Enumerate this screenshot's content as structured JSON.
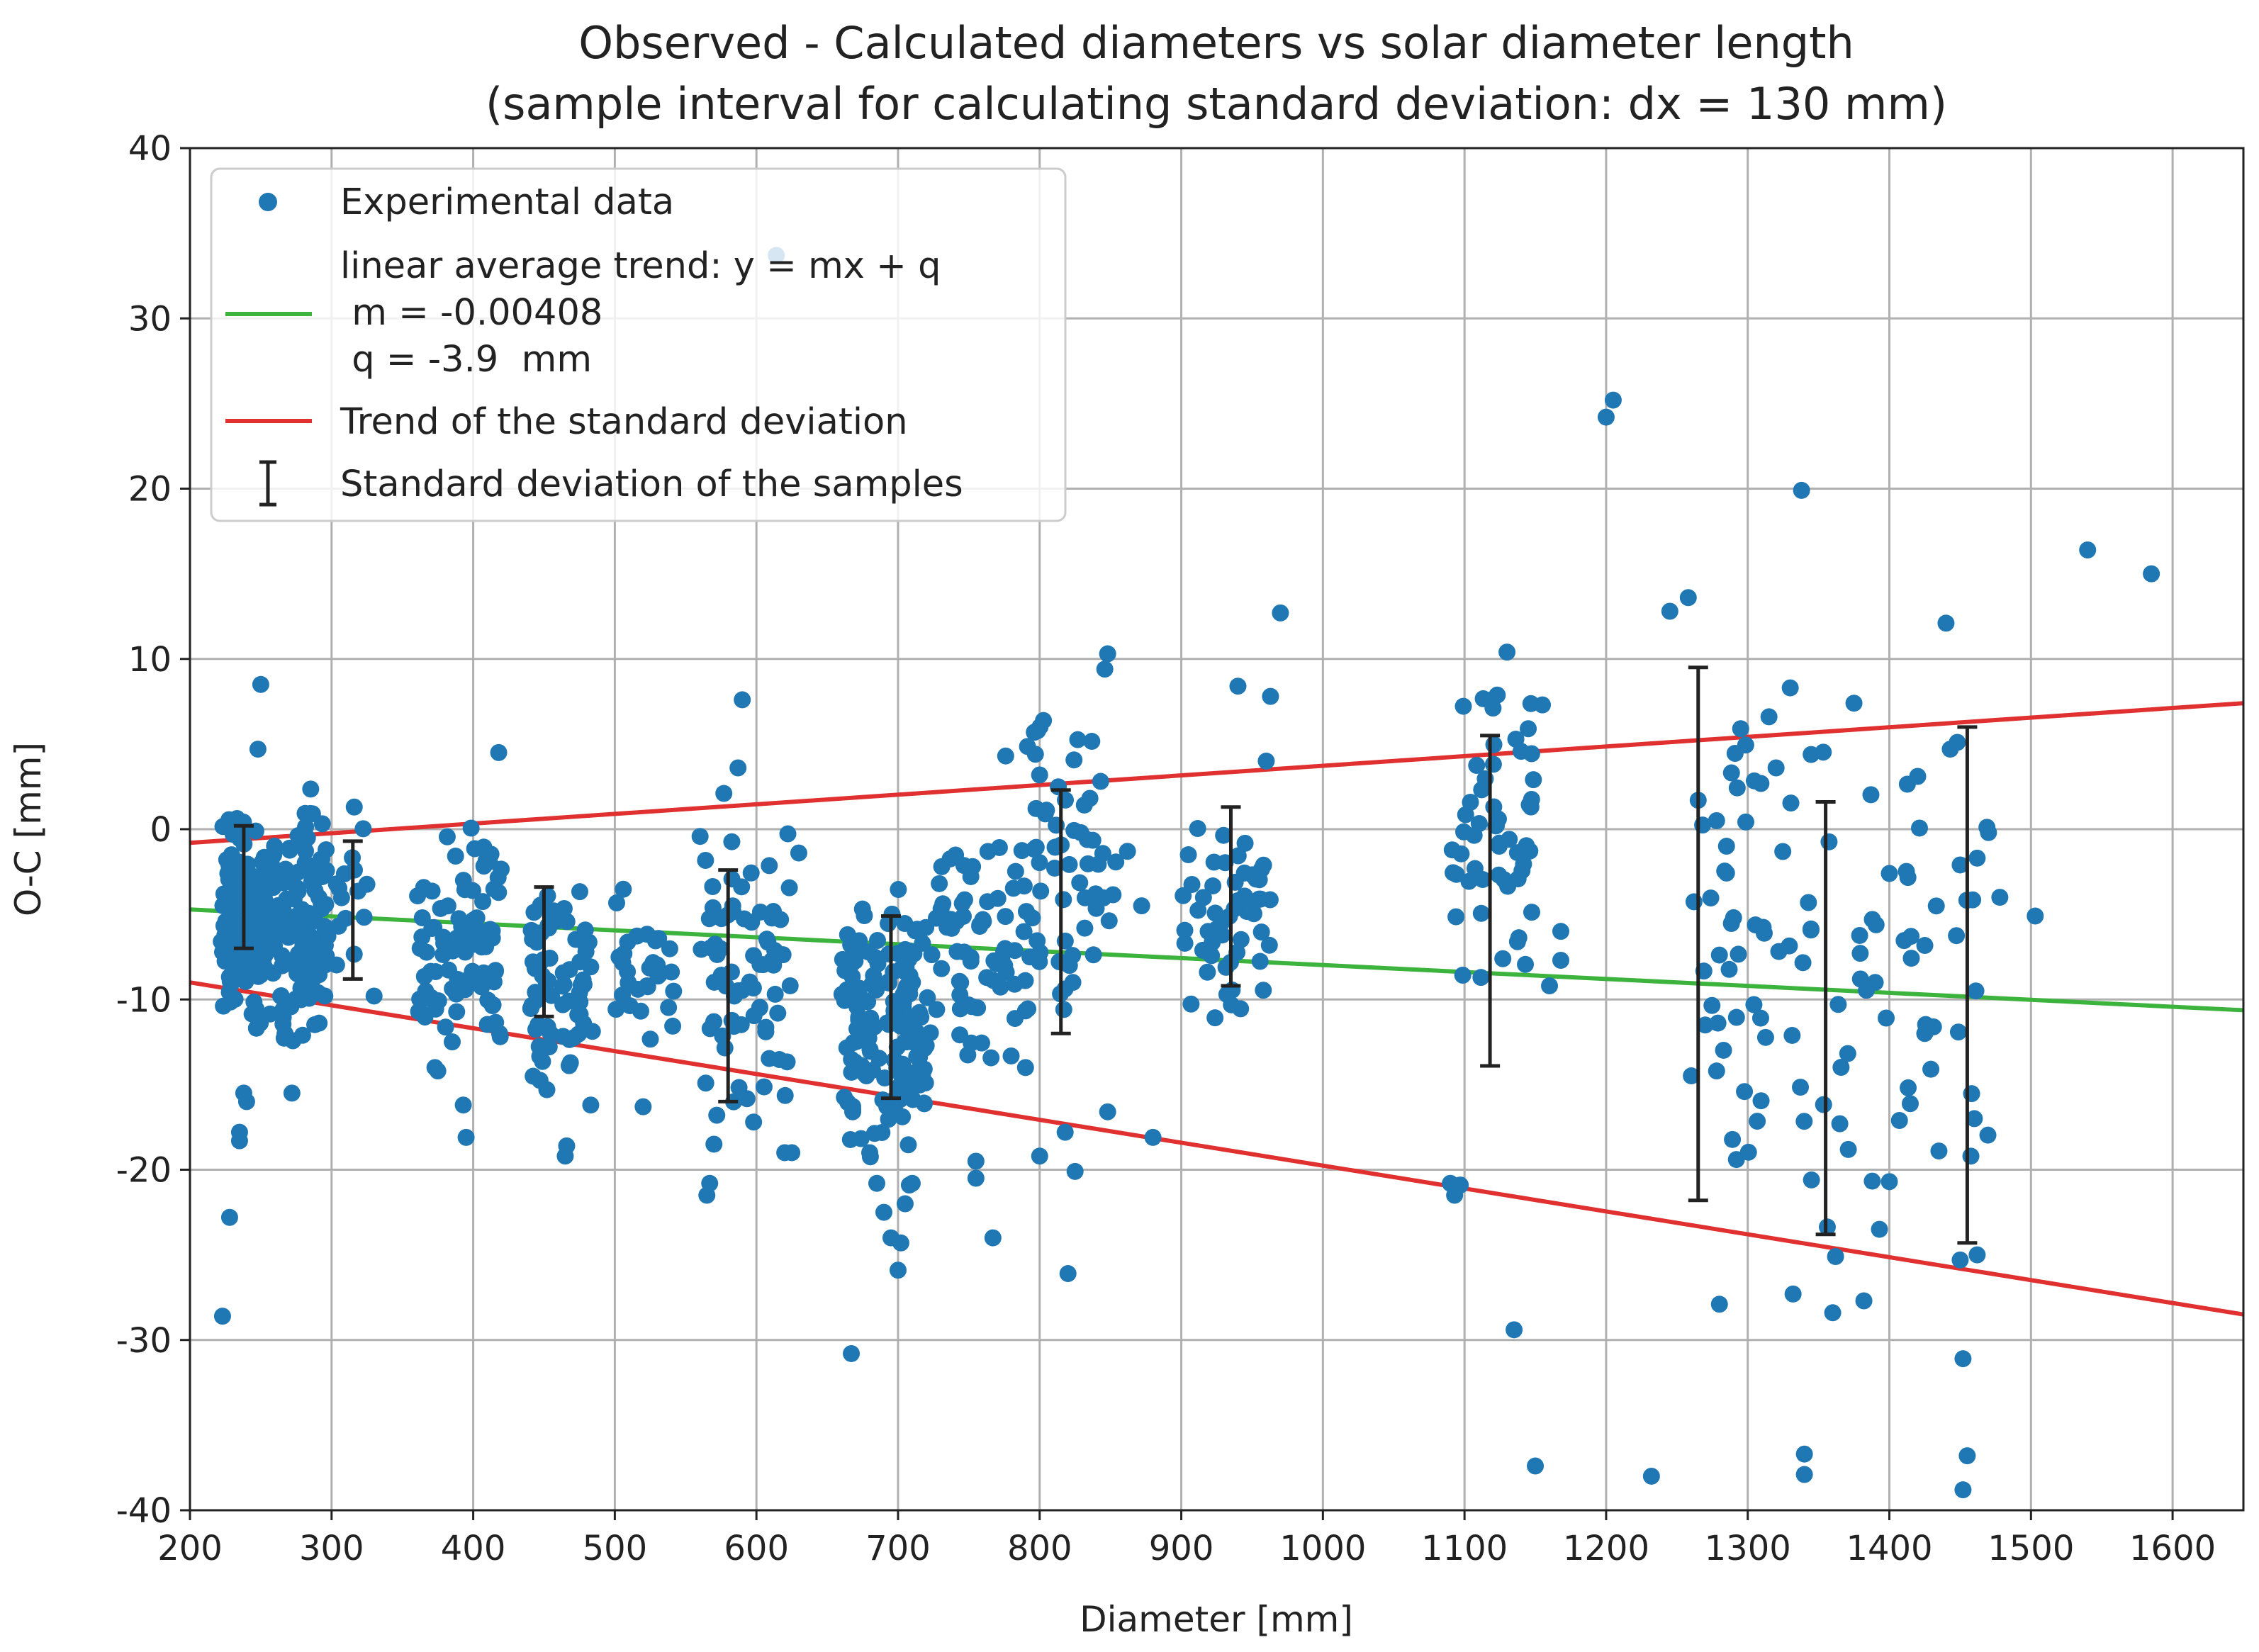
{
  "chart_data": {
    "type": "scatter",
    "title": "Observed - Calculated diameters vs solar diameter length",
    "subtitle": "(sample interval for calculating standard deviation: dx = 130 mm)",
    "xlabel": "Diameter [mm]",
    "ylabel": "O-C [mm]",
    "xlim": [
      200,
      1650
    ],
    "ylim": [
      -40,
      40
    ],
    "xticks": [
      200,
      300,
      400,
      500,
      600,
      700,
      800,
      900,
      1000,
      1100,
      1200,
      1300,
      1400,
      1500,
      1600
    ],
    "yticks": [
      -40,
      -30,
      -20,
      -10,
      0,
      10,
      20,
      30,
      40
    ],
    "grid": true,
    "legend_position": "top-left",
    "colors": {
      "points": "#1f77b4",
      "linear_trend": "#3cb33c",
      "std_trend": "#e03030",
      "error_bars": "#222222"
    },
    "legend": [
      {
        "kind": "marker",
        "lines": [
          "Experimental data"
        ]
      },
      {
        "kind": "green-line",
        "lines": [
          "linear average trend: y = mx + q",
          " m = -0.00408",
          " q = -3.9  mm"
        ]
      },
      {
        "kind": "red-line",
        "lines": [
          "Trend of the standard deviation"
        ]
      },
      {
        "kind": "errorbar",
        "lines": [
          "Standard deviation of the samples"
        ]
      }
    ],
    "linear_trend": {
      "m": -0.00408,
      "q": -3.9,
      "x_range": [
        200,
        1650
      ]
    },
    "std_trend_upper": [
      [
        200,
        -0.8
      ],
      [
        1650,
        7.4
      ]
    ],
    "std_trend_lower": [
      [
        200,
        -9.0
      ],
      [
        1650,
        -28.5
      ]
    ],
    "error_bars": [
      {
        "x": 238,
        "low": -7.0,
        "high": 0.2
      },
      {
        "x": 315,
        "low": -8.8,
        "high": -0.7
      },
      {
        "x": 450,
        "low": -11.0,
        "high": -3.4
      },
      {
        "x": 580,
        "low": -16.0,
        "high": -2.4
      },
      {
        "x": 695,
        "low": -15.8,
        "high": -5.1
      },
      {
        "x": 815,
        "low": -12.0,
        "high": 2.3
      },
      {
        "x": 935,
        "low": -9.2,
        "high": 1.3
      },
      {
        "x": 1118,
        "low": -13.9,
        "high": 5.5
      },
      {
        "x": 1265,
        "low": -21.8,
        "high": 9.5
      },
      {
        "x": 1355,
        "low": -23.8,
        "high": 1.6
      },
      {
        "x": 1455,
        "low": -24.3,
        "high": 6.0
      }
    ],
    "clusters": [
      {
        "x": [
          222,
          260
        ],
        "y": [
          -12,
          1.5
        ],
        "n": 150
      },
      {
        "x": [
          262,
          298
        ],
        "y": [
          -13,
          2.5
        ],
        "n": 110
      },
      {
        "x": [
          300,
          325
        ],
        "y": [
          -10,
          1.2
        ],
        "n": 14
      },
      {
        "x": [
          360,
          420
        ],
        "y": [
          -14,
          1.5
        ],
        "n": 90
      },
      {
        "x": [
          440,
          485
        ],
        "y": [
          -16,
          -2
        ],
        "n": 70
      },
      {
        "x": [
          500,
          545
        ],
        "y": [
          -13,
          -3
        ],
        "n": 30
      },
      {
        "x": [
          560,
          630
        ],
        "y": [
          -19,
          1
        ],
        "n": 70
      },
      {
        "x": [
          660,
          720
        ],
        "y": [
          -20,
          -3
        ],
        "n": 150
      },
      {
        "x": [
          720,
          790
        ],
        "y": [
          -14,
          0.5
        ],
        "n": 70
      },
      {
        "x": [
          790,
          855
        ],
        "y": [
          -13,
          10
        ],
        "n": 60
      },
      {
        "x": [
          900,
          965
        ],
        "y": [
          -13,
          2
        ],
        "n": 55
      },
      {
        "x": [
          1090,
          1150
        ],
        "y": [
          -12,
          10
        ],
        "n": 55
      },
      {
        "x": [
          1260,
          1345
        ],
        "y": [
          -20,
          7
        ],
        "n": 45
      },
      {
        "x": [
          1350,
          1470
        ],
        "y": [
          -25,
          6
        ],
        "n": 40
      }
    ],
    "points": [
      [
        223,
        -28.6
      ],
      [
        228,
        -22.8
      ],
      [
        235,
        -18.3
      ],
      [
        235,
        -17.8
      ],
      [
        238,
        -15.5
      ],
      [
        240,
        -16
      ],
      [
        250,
        8.5
      ],
      [
        248,
        4.7
      ],
      [
        272,
        -15.5
      ],
      [
        316,
        1.3
      ],
      [
        330,
        -9.8
      ],
      [
        418,
        4.5
      ],
      [
        373,
        -14
      ],
      [
        375,
        -14.2
      ],
      [
        393,
        -16.2
      ],
      [
        395,
        -18.1
      ],
      [
        465,
        -19.2
      ],
      [
        466,
        -18.6
      ],
      [
        483,
        -16.2
      ],
      [
        452,
        -15.3
      ],
      [
        520,
        -16.3
      ],
      [
        565,
        -21.5
      ],
      [
        567,
        -20.8
      ],
      [
        570,
        -18.5
      ],
      [
        572,
        -16.8
      ],
      [
        590,
        7.6
      ],
      [
        587,
        3.6
      ],
      [
        577,
        2.1
      ],
      [
        598,
        -17.2
      ],
      [
        620,
        -19
      ],
      [
        625,
        -19
      ],
      [
        614,
        33.7
      ],
      [
        667,
        -30.8
      ],
      [
        668,
        -16.6
      ],
      [
        680,
        -19
      ],
      [
        685,
        -20.8
      ],
      [
        690,
        -22.5
      ],
      [
        695,
        -24
      ],
      [
        700,
        -25.9
      ],
      [
        702,
        -24.3
      ],
      [
        705,
        -22
      ],
      [
        708,
        -20.9
      ],
      [
        710,
        -20.8
      ],
      [
        755,
        -19.5
      ],
      [
        755,
        -20.5
      ],
      [
        767,
        -24
      ],
      [
        776,
        4.3
      ],
      [
        797,
        4.4
      ],
      [
        790,
        -14
      ],
      [
        800,
        -19.2
      ],
      [
        820,
        -26.1
      ],
      [
        825,
        -20.1
      ],
      [
        818,
        -17.8
      ],
      [
        848,
        10.3
      ],
      [
        846,
        9.4
      ],
      [
        848,
        -16.6
      ],
      [
        862,
        -1.3
      ],
      [
        872,
        -4.5
      ],
      [
        880,
        -18.1
      ],
      [
        905,
        -1.5
      ],
      [
        940,
        8.4
      ],
      [
        963,
        7.8
      ],
      [
        970,
        12.7
      ],
      [
        960,
        4
      ],
      [
        1090,
        -20.8
      ],
      [
        1093,
        -21.5
      ],
      [
        1097,
        -20.9
      ],
      [
        1119,
        7.6
      ],
      [
        1130,
        10.4
      ],
      [
        1135,
        -29.4
      ],
      [
        1150,
        -37.4
      ],
      [
        1155,
        7.3
      ],
      [
        1145,
        5.9
      ],
      [
        1160,
        -9.2
      ],
      [
        1168,
        -6
      ],
      [
        1168,
        -7.7
      ],
      [
        1200,
        24.2
      ],
      [
        1205,
        25.2
      ],
      [
        1232,
        -38
      ],
      [
        1245,
        12.8
      ],
      [
        1258,
        13.6
      ],
      [
        1265,
        1.7
      ],
      [
        1270,
        -11.5
      ],
      [
        1278,
        -14.2
      ],
      [
        1278,
        0.5
      ],
      [
        1280,
        -27.9
      ],
      [
        1285,
        -1
      ],
      [
        1290,
        -5.2
      ],
      [
        1292,
        -19.4
      ],
      [
        1295,
        5.9
      ],
      [
        1315,
        6.6
      ],
      [
        1320,
        3.6
      ],
      [
        1330,
        8.3
      ],
      [
        1332,
        -27.3
      ],
      [
        1338,
        19.9
      ],
      [
        1340,
        -36.7
      ],
      [
        1340,
        -37.9
      ],
      [
        1345,
        -20.6
      ],
      [
        1360,
        -28.4
      ],
      [
        1362,
        -25.1
      ],
      [
        1365,
        -17.3
      ],
      [
        1375,
        7.4
      ],
      [
        1382,
        -27.7
      ],
      [
        1388,
        -5.3
      ],
      [
        1390,
        -9
      ],
      [
        1393,
        -23.5
      ],
      [
        1400,
        -2.6
      ],
      [
        1400,
        -20.7
      ],
      [
        1420,
        3.1
      ],
      [
        1425,
        -12
      ],
      [
        1435,
        -18.9
      ],
      [
        1440,
        12.1
      ],
      [
        1443,
        4.7
      ],
      [
        1448,
        5.1
      ],
      [
        1450,
        -2.1
      ],
      [
        1450,
        -25.3
      ],
      [
        1452,
        -31.1
      ],
      [
        1455,
        -36.8
      ],
      [
        1452,
        -38.8
      ],
      [
        1460,
        -17
      ],
      [
        1462,
        -25
      ],
      [
        1462,
        -1.7
      ],
      [
        1470,
        -0.2
      ],
      [
        1478,
        -4
      ],
      [
        1503,
        -5.1
      ],
      [
        1540,
        16.4
      ],
      [
        1585,
        15
      ]
    ]
  }
}
